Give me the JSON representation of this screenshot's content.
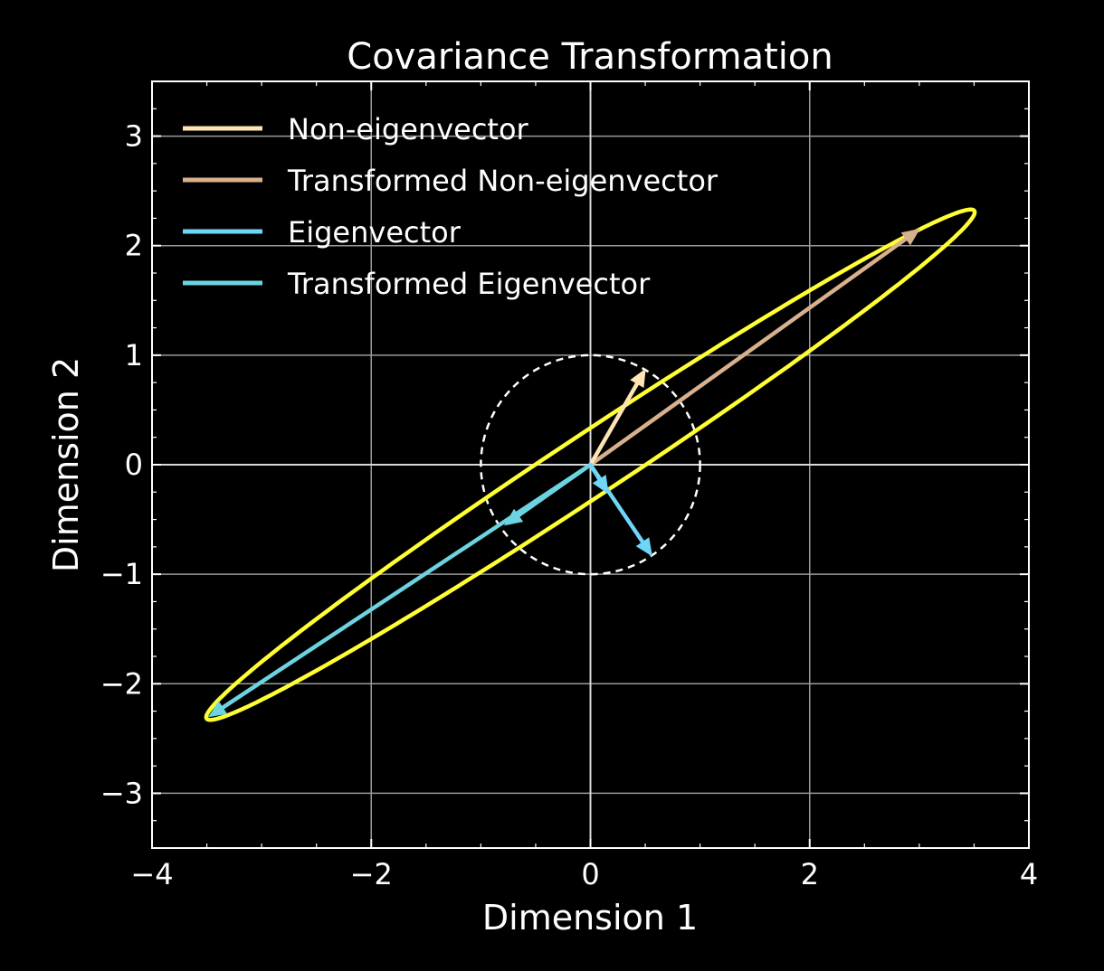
{
  "chart_data": {
    "type": "line",
    "title": "Covariance Transformation",
    "xlabel": "Dimension 1",
    "ylabel": "Dimension 2",
    "xlim": [
      -4,
      4
    ],
    "ylim": [
      -3.5,
      3.5
    ],
    "xticks": [
      -4,
      -2,
      0,
      2,
      4
    ],
    "xtick_labels": [
      "−4",
      "−2",
      "0",
      "2",
      "4"
    ],
    "yticks": [
      3,
      2,
      1,
      0,
      -1,
      -2,
      -3
    ],
    "ytick_labels": [
      "3",
      "2",
      "1",
      "0",
      "−1",
      "−2",
      "−3"
    ],
    "grid": true,
    "legend_position": "top-left",
    "background_color": "#000000",
    "series": [
      {
        "name": "Non-eigenvector",
        "color": "#fde4b4",
        "start": [
          0,
          0
        ],
        "end": [
          0.5,
          0.87
        ]
      },
      {
        "name": "Transformed Non-eigenvector",
        "color": "#d9b08c",
        "start": [
          0,
          0
        ],
        "end": [
          3.0,
          2.15
        ]
      },
      {
        "name": "Eigenvector",
        "color": "#6fd6f7",
        "start": [
          0,
          0
        ],
        "end": [
          0.56,
          -0.83
        ]
      },
      {
        "name": "Transformed Eigenvector",
        "color": "#6cd4e0",
        "start": [
          0,
          0
        ],
        "end": [
          -3.48,
          -2.3
        ]
      }
    ],
    "extra_arrows": [
      {
        "color": "#6cd4e0",
        "start": [
          0,
          0
        ],
        "end": [
          -0.78,
          -0.55
        ]
      },
      {
        "color": "#6fd6f7",
        "start": [
          0,
          0
        ],
        "end": [
          0.16,
          -0.26
        ]
      }
    ],
    "unit_circle": {
      "center": [
        0,
        0
      ],
      "radius": 1,
      "style": "dashed",
      "color": "#ffffff"
    },
    "ellipse": {
      "center": [
        0,
        0
      ],
      "semi_major": 4.2,
      "semi_minor": 0.28,
      "angle_deg": 33.5,
      "color": "#ffff33"
    }
  }
}
